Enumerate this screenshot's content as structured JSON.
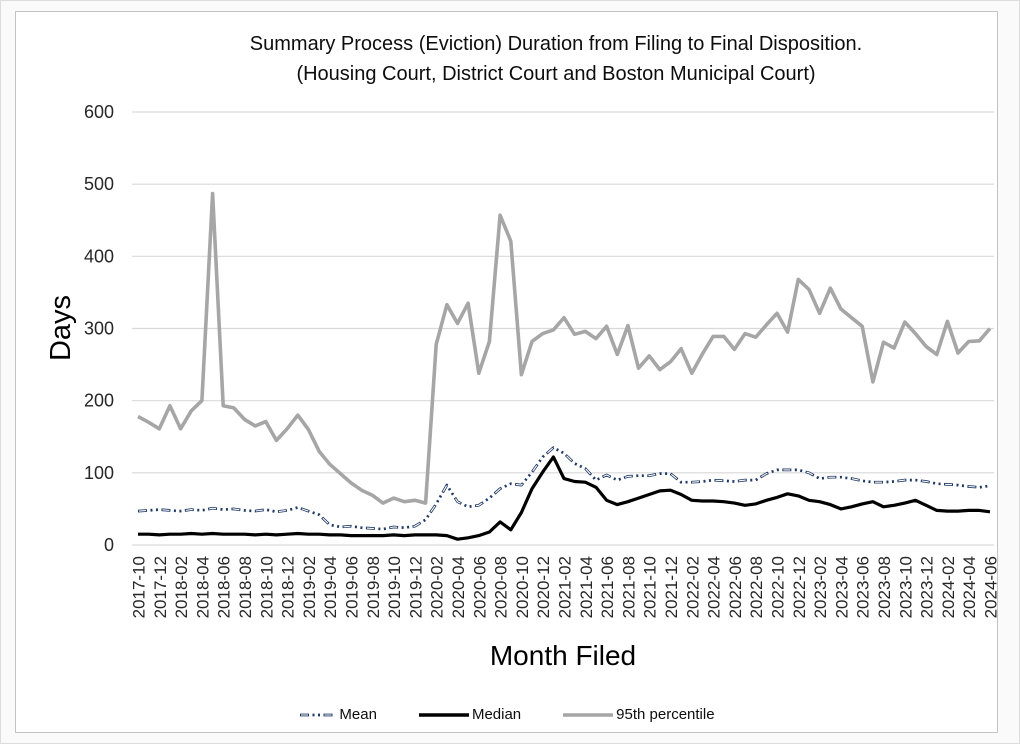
{
  "colors": {
    "mean": "#1f3864",
    "median": "#000000",
    "p95": "#a6a6a6",
    "gridline": "#d9d9d9",
    "panel_border": "#c3c3c3",
    "page_bg": "#fafafa"
  },
  "chart_data": {
    "type": "line",
    "title": "Summary Process (Eviction) Duration from Filing to Final Disposition.",
    "subtitle": "(Housing Court, District Court and Boston Municipal Court)",
    "xlabel": "Month Filed",
    "ylabel": "Days",
    "ylim": [
      0,
      600
    ],
    "y_ticks": [
      0,
      100,
      200,
      300,
      400,
      500,
      600
    ],
    "grid": "horizontal",
    "legend_position": "bottom",
    "x_tick_every": 2,
    "x": [
      "2017-10",
      "2017-11",
      "2017-12",
      "2018-01",
      "2018-02",
      "2018-03",
      "2018-04",
      "2018-05",
      "2018-06",
      "2018-07",
      "2018-08",
      "2018-09",
      "2018-10",
      "2018-11",
      "2018-12",
      "2019-01",
      "2019-02",
      "2019-03",
      "2019-04",
      "2019-05",
      "2019-06",
      "2019-07",
      "2019-08",
      "2019-09",
      "2019-10",
      "2019-11",
      "2019-12",
      "2020-01",
      "2020-02",
      "2020-03",
      "2020-04",
      "2020-05",
      "2020-06",
      "2020-07",
      "2020-08",
      "2020-09",
      "2020-10",
      "2020-11",
      "2020-12",
      "2021-01",
      "2021-02",
      "2021-03",
      "2021-04",
      "2021-05",
      "2021-06",
      "2021-07",
      "2021-08",
      "2021-09",
      "2021-10",
      "2021-11",
      "2021-12",
      "2022-01",
      "2022-02",
      "2022-03",
      "2022-04",
      "2022-05",
      "2022-06",
      "2022-07",
      "2022-08",
      "2022-09",
      "2022-10",
      "2022-11",
      "2022-12",
      "2023-01",
      "2023-02",
      "2023-03",
      "2023-04",
      "2023-05",
      "2023-06",
      "2023-07",
      "2023-08",
      "2023-09",
      "2023-10",
      "2023-11",
      "2023-12",
      "2024-01",
      "2024-02",
      "2024-03",
      "2024-04",
      "2024-05",
      "2024-06"
    ],
    "series": [
      {
        "name": "Mean",
        "color": "#1f3864",
        "style": "long-dash-dot-dot",
        "values": [
          47,
          48,
          49,
          48,
          47,
          49,
          48,
          51,
          49,
          50,
          48,
          47,
          49,
          46,
          48,
          52,
          47,
          42,
          28,
          25,
          26,
          24,
          23,
          22,
          25,
          24,
          26,
          35,
          57,
          83,
          60,
          53,
          55,
          65,
          78,
          85,
          83,
          101,
          122,
          135,
          127,
          113,
          106,
          90,
          97,
          90,
          95,
          96,
          96,
          99,
          99,
          87,
          87,
          88,
          90,
          89,
          88,
          90,
          90,
          99,
          104,
          104,
          104,
          100,
          92,
          94,
          94,
          92,
          89,
          87,
          87,
          88,
          90,
          90,
          88,
          85,
          84,
          83,
          81,
          80,
          82
        ]
      },
      {
        "name": "Median",
        "color": "#000000",
        "style": "solid",
        "values": [
          15,
          15,
          14,
          15,
          15,
          16,
          15,
          16,
          15,
          15,
          15,
          14,
          15,
          14,
          15,
          16,
          15,
          15,
          14,
          14,
          13,
          13,
          13,
          13,
          14,
          13,
          14,
          14,
          14,
          13,
          8,
          10,
          13,
          18,
          32,
          21,
          45,
          78,
          101,
          122,
          92,
          88,
          87,
          80,
          62,
          56,
          60,
          65,
          70,
          75,
          76,
          70,
          62,
          61,
          61,
          60,
          58,
          55,
          57,
          62,
          66,
          71,
          68,
          62,
          60,
          56,
          50,
          53,
          57,
          60,
          53,
          55,
          58,
          62,
          55,
          48,
          47,
          47,
          48,
          48,
          46
        ]
      },
      {
        "name": "95th percentile",
        "color": "#a6a6a6",
        "style": "solid",
        "values": [
          178,
          170,
          161,
          193,
          161,
          186,
          200,
          487,
          193,
          190,
          174,
          165,
          171,
          145,
          161,
          180,
          160,
          130,
          112,
          99,
          86,
          76,
          69,
          58,
          65,
          60,
          62,
          58,
          278,
          333,
          307,
          335,
          238,
          282,
          457,
          421,
          236,
          282,
          293,
          298,
          315,
          292,
          296,
          286,
          303,
          264,
          304,
          245,
          262,
          243,
          254,
          272,
          238,
          265,
          289,
          289,
          271,
          293,
          288,
          305,
          321,
          295,
          368,
          354,
          321,
          356,
          327,
          315,
          303,
          226,
          281,
          273,
          309,
          293,
          275,
          264,
          310,
          266,
          282,
          283,
          300
        ]
      }
    ]
  }
}
